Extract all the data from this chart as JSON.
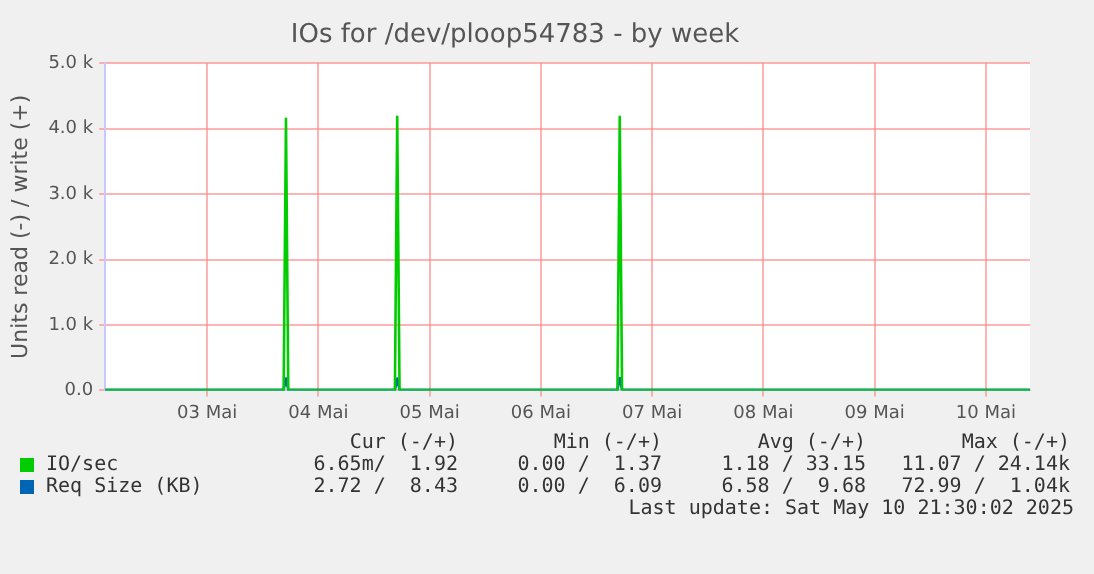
{
  "chart_data": {
    "type": "line",
    "title": "IOs for /dev/ploop54783 - by week",
    "ylabel": "Units read (-) / write (+)",
    "xlim": [
      "2025-05-02T14:00",
      "2025-05-10T21:30"
    ],
    "xticks": [
      {
        "value": "2025-05-03T12:00",
        "label": "03 Mai"
      },
      {
        "value": "2025-05-04T12:00",
        "label": "04 Mai"
      },
      {
        "value": "2025-05-05T12:00",
        "label": "05 Mai"
      },
      {
        "value": "2025-05-06T12:00",
        "label": "06 Mai"
      },
      {
        "value": "2025-05-07T12:00",
        "label": "07 Mai"
      },
      {
        "value": "2025-05-08T12:00",
        "label": "08 Mai"
      },
      {
        "value": "2025-05-09T12:00",
        "label": "09 Mai"
      },
      {
        "value": "2025-05-10T12:00",
        "label": "10 Mai"
      }
    ],
    "ylim": [
      0,
      5000
    ],
    "yticks": [
      {
        "value": 0,
        "label": "0.0"
      },
      {
        "value": 1000,
        "label": "1.0 k"
      },
      {
        "value": 2000,
        "label": "2.0 k"
      },
      {
        "value": 3000,
        "label": "3.0 k"
      },
      {
        "value": 4000,
        "label": "4.0 k"
      },
      {
        "value": 5000,
        "label": "5.0 k"
      }
    ],
    "grid": true,
    "legend": "bottom",
    "marker": "none",
    "series": [
      {
        "name": "IO/sec",
        "color": "#00cc00",
        "x": [
          "2025-05-02T14:00",
          "2025-05-04T04:30",
          "2025-05-04T05:00",
          "2025-05-04T05:30",
          "2025-05-05T04:30",
          "2025-05-05T05:00",
          "2025-05-05T05:30",
          "2025-05-07T04:30",
          "2025-05-07T05:00",
          "2025-05-07T05:30",
          "2025-05-10T21:30"
        ],
        "values": [
          0,
          0,
          4150,
          0,
          0,
          4180,
          0,
          0,
          4180,
          0,
          0
        ]
      },
      {
        "name": "Req Size (KB)",
        "color": "#0066b3",
        "x": [
          "2025-05-02T14:00",
          "2025-05-04T04:30",
          "2025-05-04T05:00",
          "2025-05-04T05:30",
          "2025-05-05T04:30",
          "2025-05-05T05:00",
          "2025-05-05T05:30",
          "2025-05-07T04:30",
          "2025-05-07T05:00",
          "2025-05-07T05:30",
          "2025-05-10T21:30"
        ],
        "values": [
          10,
          10,
          180,
          10,
          10,
          180,
          10,
          10,
          190,
          10,
          10
        ]
      }
    ],
    "annotations": [
      "Cur (-/+)",
      "Min (-/+)",
      "Avg (-/+)",
      "Max (-/+)",
      "6.65m/  1.92",
      "0.00 /  1.37",
      "1.18 / 33.15",
      "11.07 / 24.14k",
      "2.72 /  8.43",
      "0.00 /  6.09",
      "6.58 /  9.68",
      "72.99 /  1.04k",
      "Last update: Sat May 10 21:30:02 2025"
    ]
  }
}
